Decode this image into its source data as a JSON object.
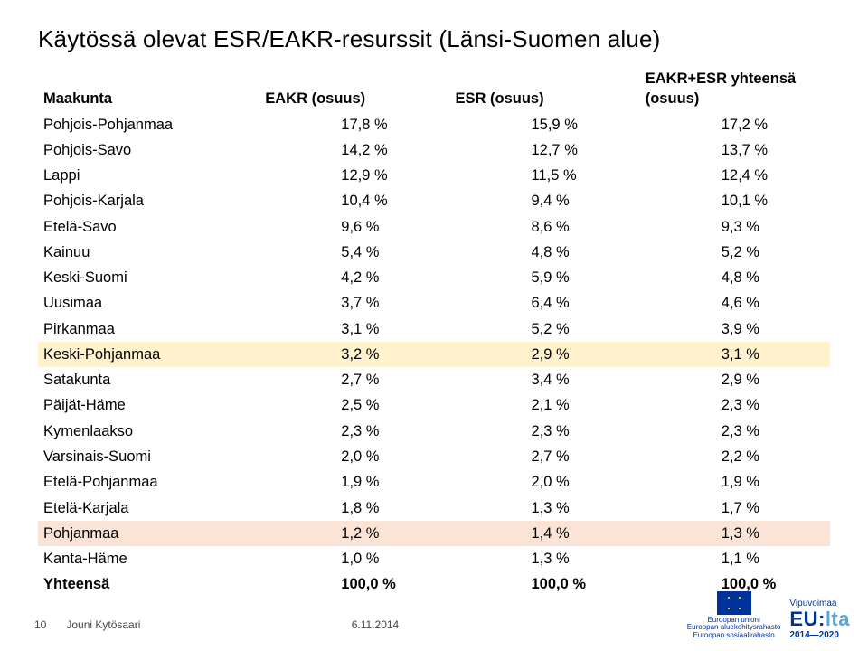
{
  "title": "Käytössä olevat ESR/EAKR-resurssit (Länsi-Suomen alue)",
  "columns": [
    "Maakunta",
    "EAKR (osuus)",
    "ESR (osuus)",
    "EAKR+ESR yhteensä (osuus)"
  ],
  "rows": [
    {
      "c": [
        "Pohjois-Pohjanmaa",
        "17,8 %",
        "15,9 %",
        "17,2 %"
      ]
    },
    {
      "c": [
        "Pohjois-Savo",
        "14,2 %",
        "12,7 %",
        "13,7 %"
      ]
    },
    {
      "c": [
        "Lappi",
        "12,9 %",
        "11,5 %",
        "12,4 %"
      ]
    },
    {
      "c": [
        "Pohjois-Karjala",
        "10,4 %",
        "9,4 %",
        "10,1 %"
      ]
    },
    {
      "c": [
        "Etelä-Savo",
        "9,6 %",
        "8,6 %",
        "9,3 %"
      ]
    },
    {
      "c": [
        "Kainuu",
        "5,4 %",
        "4,8 %",
        "5,2 %"
      ]
    },
    {
      "c": [
        "Keski-Suomi",
        "4,2 %",
        "5,9 %",
        "4,8 %"
      ]
    },
    {
      "c": [
        "Uusimaa",
        "3,7 %",
        "6,4 %",
        "4,6 %"
      ]
    },
    {
      "c": [
        "Pirkanmaa",
        "3,1 %",
        "5,2 %",
        "3,9 %"
      ]
    },
    {
      "c": [
        "Keski-Pohjanmaa",
        "3,2 %",
        "2,9 %",
        "3,1 %"
      ],
      "hl": "yellow"
    },
    {
      "c": [
        "Satakunta",
        "2,7 %",
        "3,4 %",
        "2,9 %"
      ]
    },
    {
      "c": [
        "Päijät-Häme",
        "2,5 %",
        "2,1 %",
        "2,3 %"
      ]
    },
    {
      "c": [
        "Kymenlaakso",
        "2,3 %",
        "2,3 %",
        "2,3 %"
      ]
    },
    {
      "c": [
        "Varsinais-Suomi",
        "2,0 %",
        "2,7 %",
        "2,2 %"
      ]
    },
    {
      "c": [
        "Etelä-Pohjanmaa",
        "1,9 %",
        "2,0 %",
        "1,9 %"
      ]
    },
    {
      "c": [
        "Etelä-Karjala",
        "1,8 %",
        "1,3 %",
        "1,7 %"
      ]
    },
    {
      "c": [
        "Pohjanmaa",
        "1,2 %",
        "1,4 %",
        "1,3 %"
      ],
      "hl": "orange"
    },
    {
      "c": [
        "Kanta-Häme",
        "1,0 %",
        "1,3 %",
        "1,1 %"
      ]
    },
    {
      "c": [
        "Yhteensä",
        "100,0 %",
        "100,0 %",
        "100,0 %"
      ],
      "total": true
    }
  ],
  "footer": {
    "page": "10",
    "author": "Jouni Kytösaari",
    "date": "6.11.2014"
  },
  "logos": {
    "eu_lines": [
      "Euroopan unioni",
      "Euroopan aluekehitysrahasto",
      "Euroopan sosiaalirahasto"
    ],
    "vipu_top": "Vipuvoimaa",
    "vipu_big1": "EU:",
    "vipu_big2": "lta",
    "vipu_years": "2014—2020"
  },
  "style": {
    "hl_yellow": "#fff2cc",
    "hl_orange": "#fbe4d6"
  }
}
